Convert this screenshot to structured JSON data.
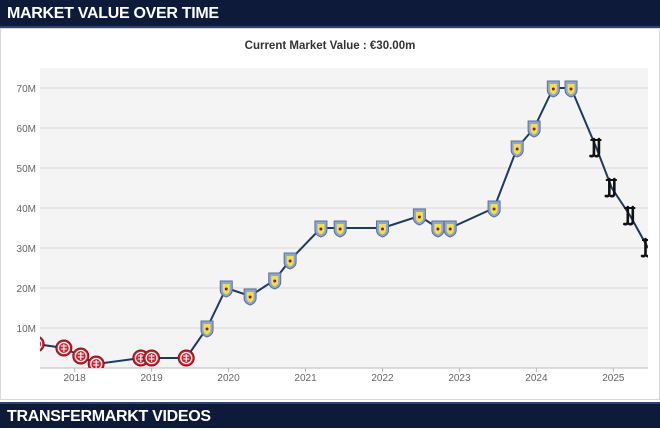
{
  "header": {
    "title": "MARKET VALUE OVER TIME"
  },
  "footer": {
    "title": "TRANSFERMARKT VIDEOS"
  },
  "chart_data": {
    "type": "line",
    "title": "Current Market Value : €30.00m",
    "xlabel": "",
    "ylabel": "",
    "x_ticks": [
      "2018",
      "2019",
      "2020",
      "2021",
      "2022",
      "2023",
      "2024",
      "2025"
    ],
    "y_ticks": [
      "10M",
      "20M",
      "30M",
      "40M",
      "50M",
      "60M",
      "70M"
    ],
    "xlim": [
      2017.55,
      2025.45
    ],
    "ylim": [
      0,
      75
    ],
    "grid": true,
    "colors": {
      "line": "#1d3a63",
      "grid": "#d6d6d6",
      "plot_bg": "#f4f4f4",
      "header_bg": "#0e1a3a"
    },
    "series": [
      {
        "points": [
          {
            "x": 2017.5,
            "y": 6,
            "club": "girona"
          },
          {
            "x": 2017.86,
            "y": 5,
            "club": "girona"
          },
          {
            "x": 2018.08,
            "y": 3,
            "club": "girona"
          },
          {
            "x": 2018.28,
            "y": 1,
            "club": "girona"
          },
          {
            "x": 2018.86,
            "y": 2.5,
            "club": "girona"
          },
          {
            "x": 2019.0,
            "y": 2.5,
            "club": "girona"
          },
          {
            "x": 2019.45,
            "y": 2.5,
            "club": "girona"
          },
          {
            "x": 2019.72,
            "y": 10,
            "club": "aston-villa"
          },
          {
            "x": 2019.97,
            "y": 20,
            "club": "aston-villa"
          },
          {
            "x": 2020.28,
            "y": 18,
            "club": "aston-villa"
          },
          {
            "x": 2020.6,
            "y": 22,
            "club": "aston-villa"
          },
          {
            "x": 2020.8,
            "y": 27,
            "club": "aston-villa"
          },
          {
            "x": 2021.2,
            "y": 35,
            "club": "aston-villa"
          },
          {
            "x": 2021.45,
            "y": 35,
            "club": "aston-villa"
          },
          {
            "x": 2022.0,
            "y": 35,
            "club": "aston-villa"
          },
          {
            "x": 2022.48,
            "y": 38,
            "club": "aston-villa"
          },
          {
            "x": 2022.72,
            "y": 35,
            "club": "aston-villa"
          },
          {
            "x": 2022.88,
            "y": 35,
            "club": "aston-villa"
          },
          {
            "x": 2023.45,
            "y": 40,
            "club": "aston-villa"
          },
          {
            "x": 2023.75,
            "y": 55,
            "club": "aston-villa"
          },
          {
            "x": 2023.97,
            "y": 60,
            "club": "aston-villa"
          },
          {
            "x": 2024.22,
            "y": 70,
            "club": "aston-villa"
          },
          {
            "x": 2024.45,
            "y": 70,
            "club": "aston-villa"
          },
          {
            "x": 2024.78,
            "y": 55,
            "club": "juventus"
          },
          {
            "x": 2024.98,
            "y": 45,
            "club": "juventus"
          },
          {
            "x": 2025.22,
            "y": 38,
            "club": "juventus"
          },
          {
            "x": 2025.45,
            "y": 30,
            "club": "juventus"
          }
        ]
      }
    ]
  }
}
